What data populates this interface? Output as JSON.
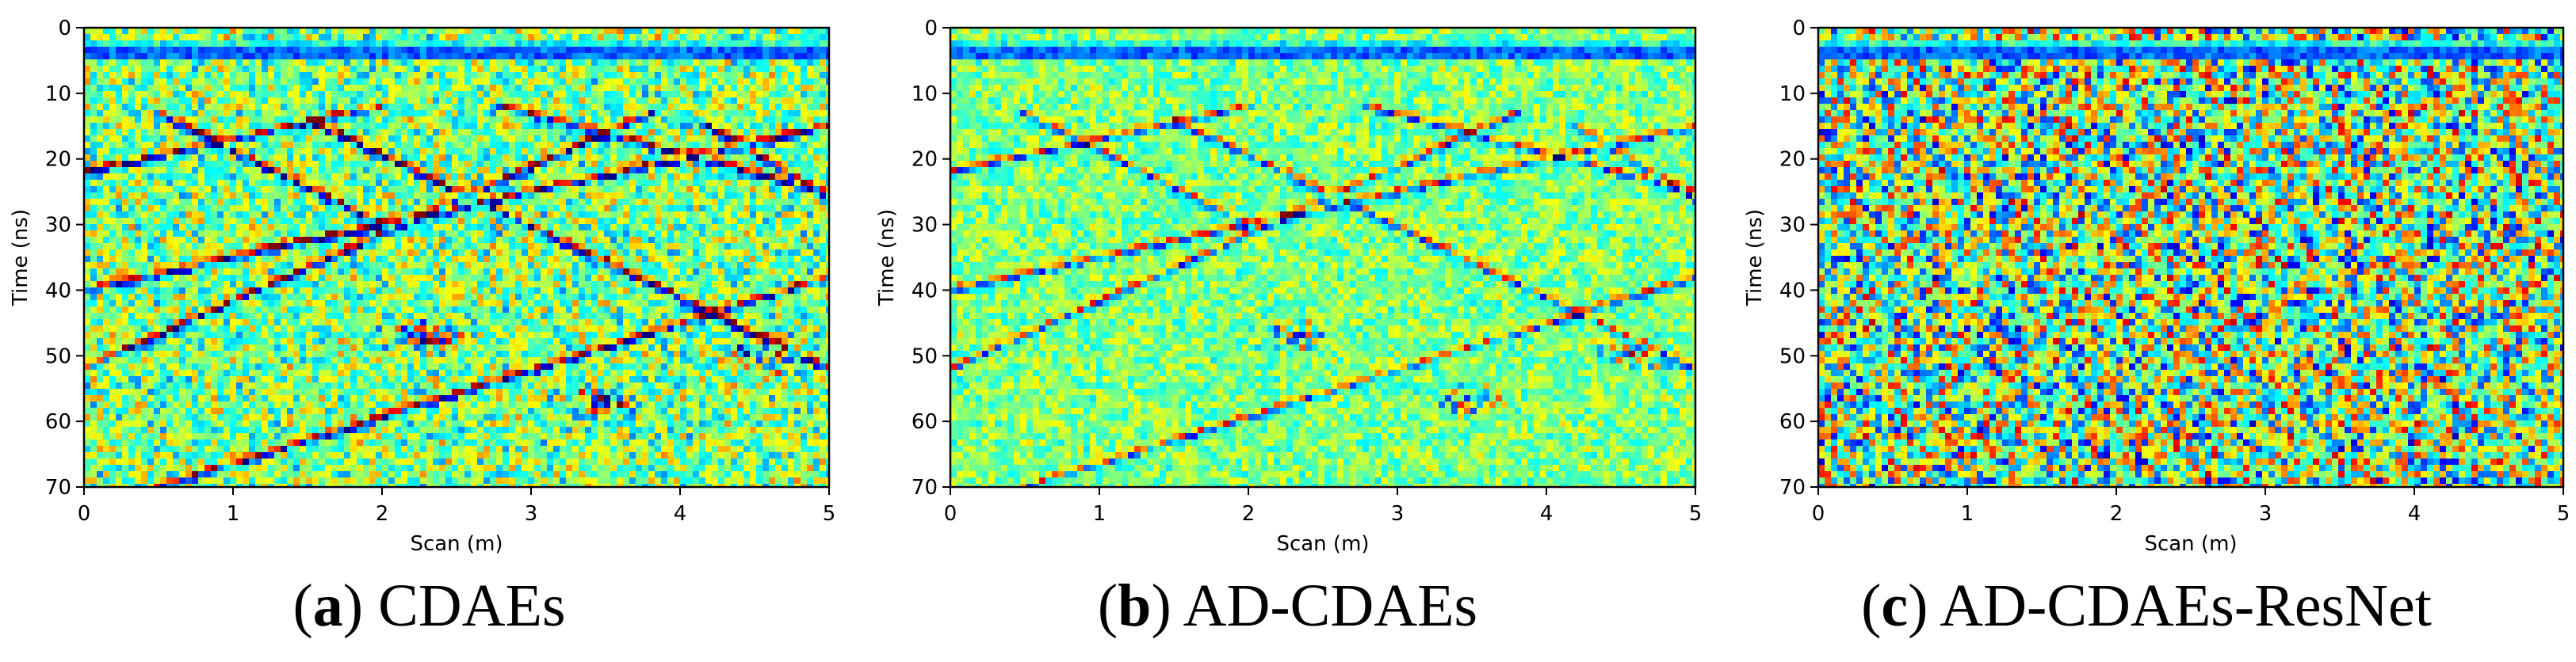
{
  "chart_data": [
    {
      "type": "heatmap",
      "caption_letter": "a",
      "caption_text": "CDAEs",
      "xlabel": "Scan (m)",
      "ylabel": "Time (ns)",
      "xlim": [
        0,
        5
      ],
      "ylim": [
        70,
        0
      ],
      "xticks": [
        "0",
        "1",
        "2",
        "3",
        "4",
        "5"
      ],
      "yticks": [
        "0",
        "10",
        "20",
        "30",
        "40",
        "50",
        "60",
        "70"
      ],
      "colormap": "jet",
      "noise_level": "medium",
      "event_strength": "strong",
      "features": {
        "direct_wave_ns": 3.5,
        "diagonal_reflections": [
          {
            "x0": 0.0,
            "y0": 22,
            "x1": 2.0,
            "y1": 12
          },
          {
            "x0": 0.0,
            "y0": 40,
            "x1": 5.0,
            "y1": 15
          },
          {
            "x0": 0.5,
            "y0": 70,
            "x1": 5.0,
            "y1": 38
          },
          {
            "x0": 0.0,
            "y0": 52,
            "x1": 3.8,
            "y1": 13
          },
          {
            "x0": 1.5,
            "y0": 14,
            "x1": 5.0,
            "y1": 52
          },
          {
            "x0": 0.5,
            "y0": 13,
            "x1": 2.0,
            "y1": 30
          },
          {
            "x0": 2.8,
            "y0": 12,
            "x1": 5.0,
            "y1": 25
          },
          {
            "x0": 4.2,
            "y0": 15,
            "x1": 5.0,
            "y1": 26
          }
        ],
        "strong_patches": [
          {
            "x": 3.5,
            "y": 57
          },
          {
            "x": 2.3,
            "y": 47
          },
          {
            "x": 4.6,
            "y": 50
          }
        ]
      }
    },
    {
      "type": "heatmap",
      "caption_letter": "b",
      "caption_text": "AD-CDAEs",
      "xlabel": "Scan (m)",
      "ylabel": "Time (ns)",
      "xlim": [
        0,
        5
      ],
      "ylim": [
        70,
        0
      ],
      "xticks": [
        "0",
        "1",
        "2",
        "3",
        "4",
        "5"
      ],
      "yticks": [
        "0",
        "10",
        "20",
        "30",
        "40",
        "50",
        "60",
        "70"
      ],
      "colormap": "jet",
      "noise_level": "low",
      "event_strength": "medium",
      "features": {
        "direct_wave_ns": 3.5,
        "diagonal_reflections": [
          {
            "x0": 0.0,
            "y0": 22,
            "x1": 2.0,
            "y1": 12
          },
          {
            "x0": 0.0,
            "y0": 40,
            "x1": 5.0,
            "y1": 15
          },
          {
            "x0": 0.5,
            "y0": 70,
            "x1": 5.0,
            "y1": 38
          },
          {
            "x0": 0.0,
            "y0": 52,
            "x1": 3.8,
            "y1": 13
          },
          {
            "x0": 1.5,
            "y0": 14,
            "x1": 5.0,
            "y1": 52
          },
          {
            "x0": 0.5,
            "y0": 13,
            "x1": 2.0,
            "y1": 30
          },
          {
            "x0": 2.8,
            "y0": 12,
            "x1": 5.0,
            "y1": 25
          },
          {
            "x0": 4.2,
            "y0": 15,
            "x1": 5.0,
            "y1": 26
          }
        ],
        "strong_patches": [
          {
            "x": 3.5,
            "y": 57
          },
          {
            "x": 2.3,
            "y": 47
          },
          {
            "x": 4.6,
            "y": 50
          }
        ]
      }
    },
    {
      "type": "heatmap",
      "caption_letter": "c",
      "caption_text": "AD-CDAEs-ResNet",
      "xlabel": "Scan (m)",
      "ylabel": "Time (ns)",
      "xlim": [
        0,
        5
      ],
      "ylim": [
        70,
        0
      ],
      "xticks": [
        "0",
        "1",
        "2",
        "3",
        "4",
        "5"
      ],
      "yticks": [
        "0",
        "10",
        "20",
        "30",
        "40",
        "50",
        "60",
        "70"
      ],
      "colormap": "jet",
      "noise_level": "high",
      "event_strength": "none",
      "features": {
        "direct_wave_ns": 3.5,
        "diagonal_reflections": [],
        "strong_patches": []
      }
    }
  ]
}
